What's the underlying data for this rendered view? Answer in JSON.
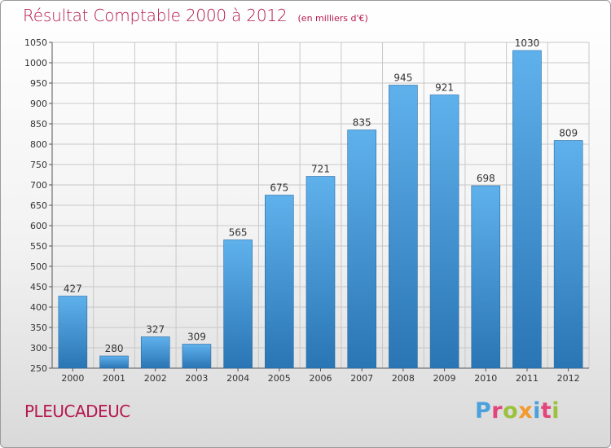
{
  "header": {
    "title": "Résultat Comptable 2000 à 2012",
    "subtitle": "(en milliers d'€)"
  },
  "footer": {
    "commune": "PLEUCADEUC",
    "logo_text": "Proxiti",
    "logo_letters": [
      {
        "char": "P",
        "color": "#4aa1dc"
      },
      {
        "char": "r",
        "color": "#e2457b"
      },
      {
        "char": "o",
        "color": "#9bc23c"
      },
      {
        "char": "x",
        "color": "#f29a2e"
      },
      {
        "char": "i",
        "color": "#4aa1dc"
      },
      {
        "char": "t",
        "color": "#e2457b"
      },
      {
        "char": "i",
        "color": "#9bc23c"
      }
    ]
  },
  "colors": {
    "title": "#b5174f",
    "bar_top": "#5fb1ec",
    "bar_bottom": "#2a75b4",
    "grid": "#c8c8c8"
  },
  "chart_data": {
    "type": "bar",
    "title": "Résultat Comptable 2000 à 2012",
    "ylabel": "en milliers d'€",
    "xlabel": "",
    "categories": [
      "2000",
      "2001",
      "2002",
      "2003",
      "2004",
      "2005",
      "2006",
      "2007",
      "2008",
      "2009",
      "2010",
      "2011",
      "2012"
    ],
    "values": [
      427,
      280,
      327,
      309,
      565,
      675,
      721,
      835,
      945,
      921,
      698,
      1030,
      809
    ],
    "ylim": [
      250,
      1050
    ],
    "yticks": [
      250,
      300,
      350,
      400,
      450,
      500,
      550,
      600,
      650,
      700,
      750,
      800,
      850,
      900,
      950,
      1000,
      1050
    ],
    "grid": true,
    "legend": "none"
  }
}
